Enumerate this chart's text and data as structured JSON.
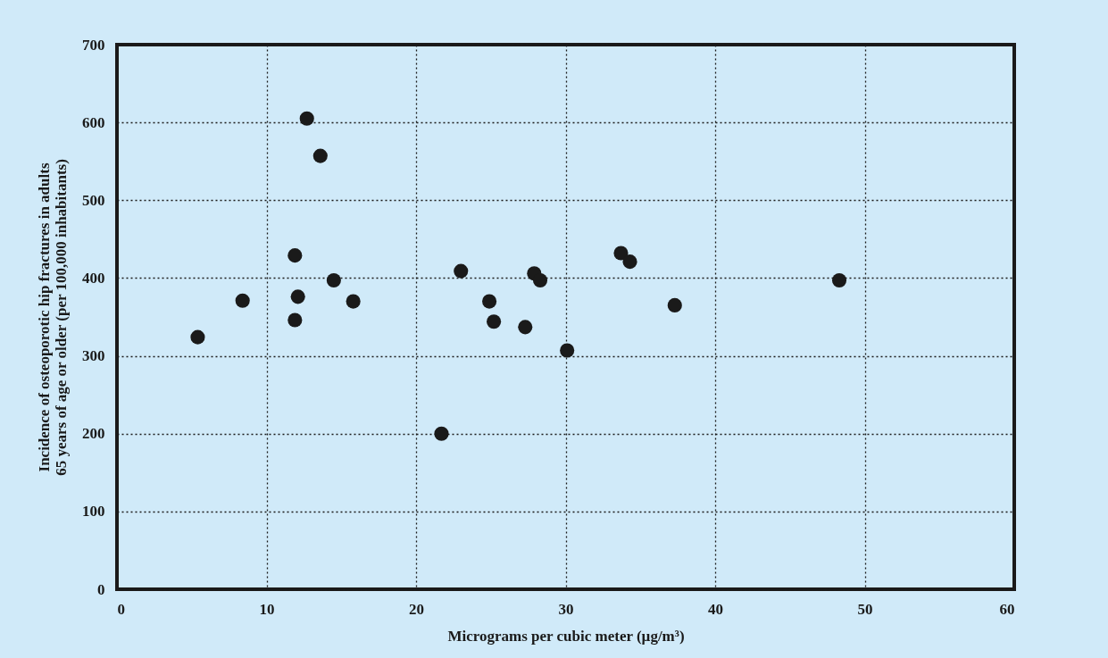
{
  "chart_data": {
    "type": "scatter",
    "xlabel": "Micrograms per cubic meter (µg/m³)",
    "ylabel": "Incidence of osteoporotic hip fractures in adults\n65 years of age or older (per 100,000 inhabitants)",
    "x": [
      5.4,
      8.4,
      12.7,
      13.6,
      11.9,
      12.1,
      11.9,
      14.5,
      15.8,
      21.7,
      23.0,
      24.9,
      25.2,
      27.3,
      27.9,
      28.3,
      30.1,
      33.7,
      34.3,
      37.3,
      48.3
    ],
    "series": [
      {
        "color": "#1a1a1a",
        "values": [
          324,
          371,
          605,
          557,
          429,
          376,
          346,
          397,
          370,
          200,
          409,
          370,
          344,
          337,
          406,
          397,
          307,
          432,
          421,
          365,
          397
        ]
      }
    ],
    "xlim": [
      0,
      60
    ],
    "ylim": [
      0,
      700
    ],
    "xticks": [
      0,
      10,
      20,
      30,
      40,
      50,
      60
    ],
    "yticks": [
      0,
      100,
      200,
      300,
      400,
      500,
      600,
      700
    ],
    "grid": true,
    "marker": "circle"
  }
}
